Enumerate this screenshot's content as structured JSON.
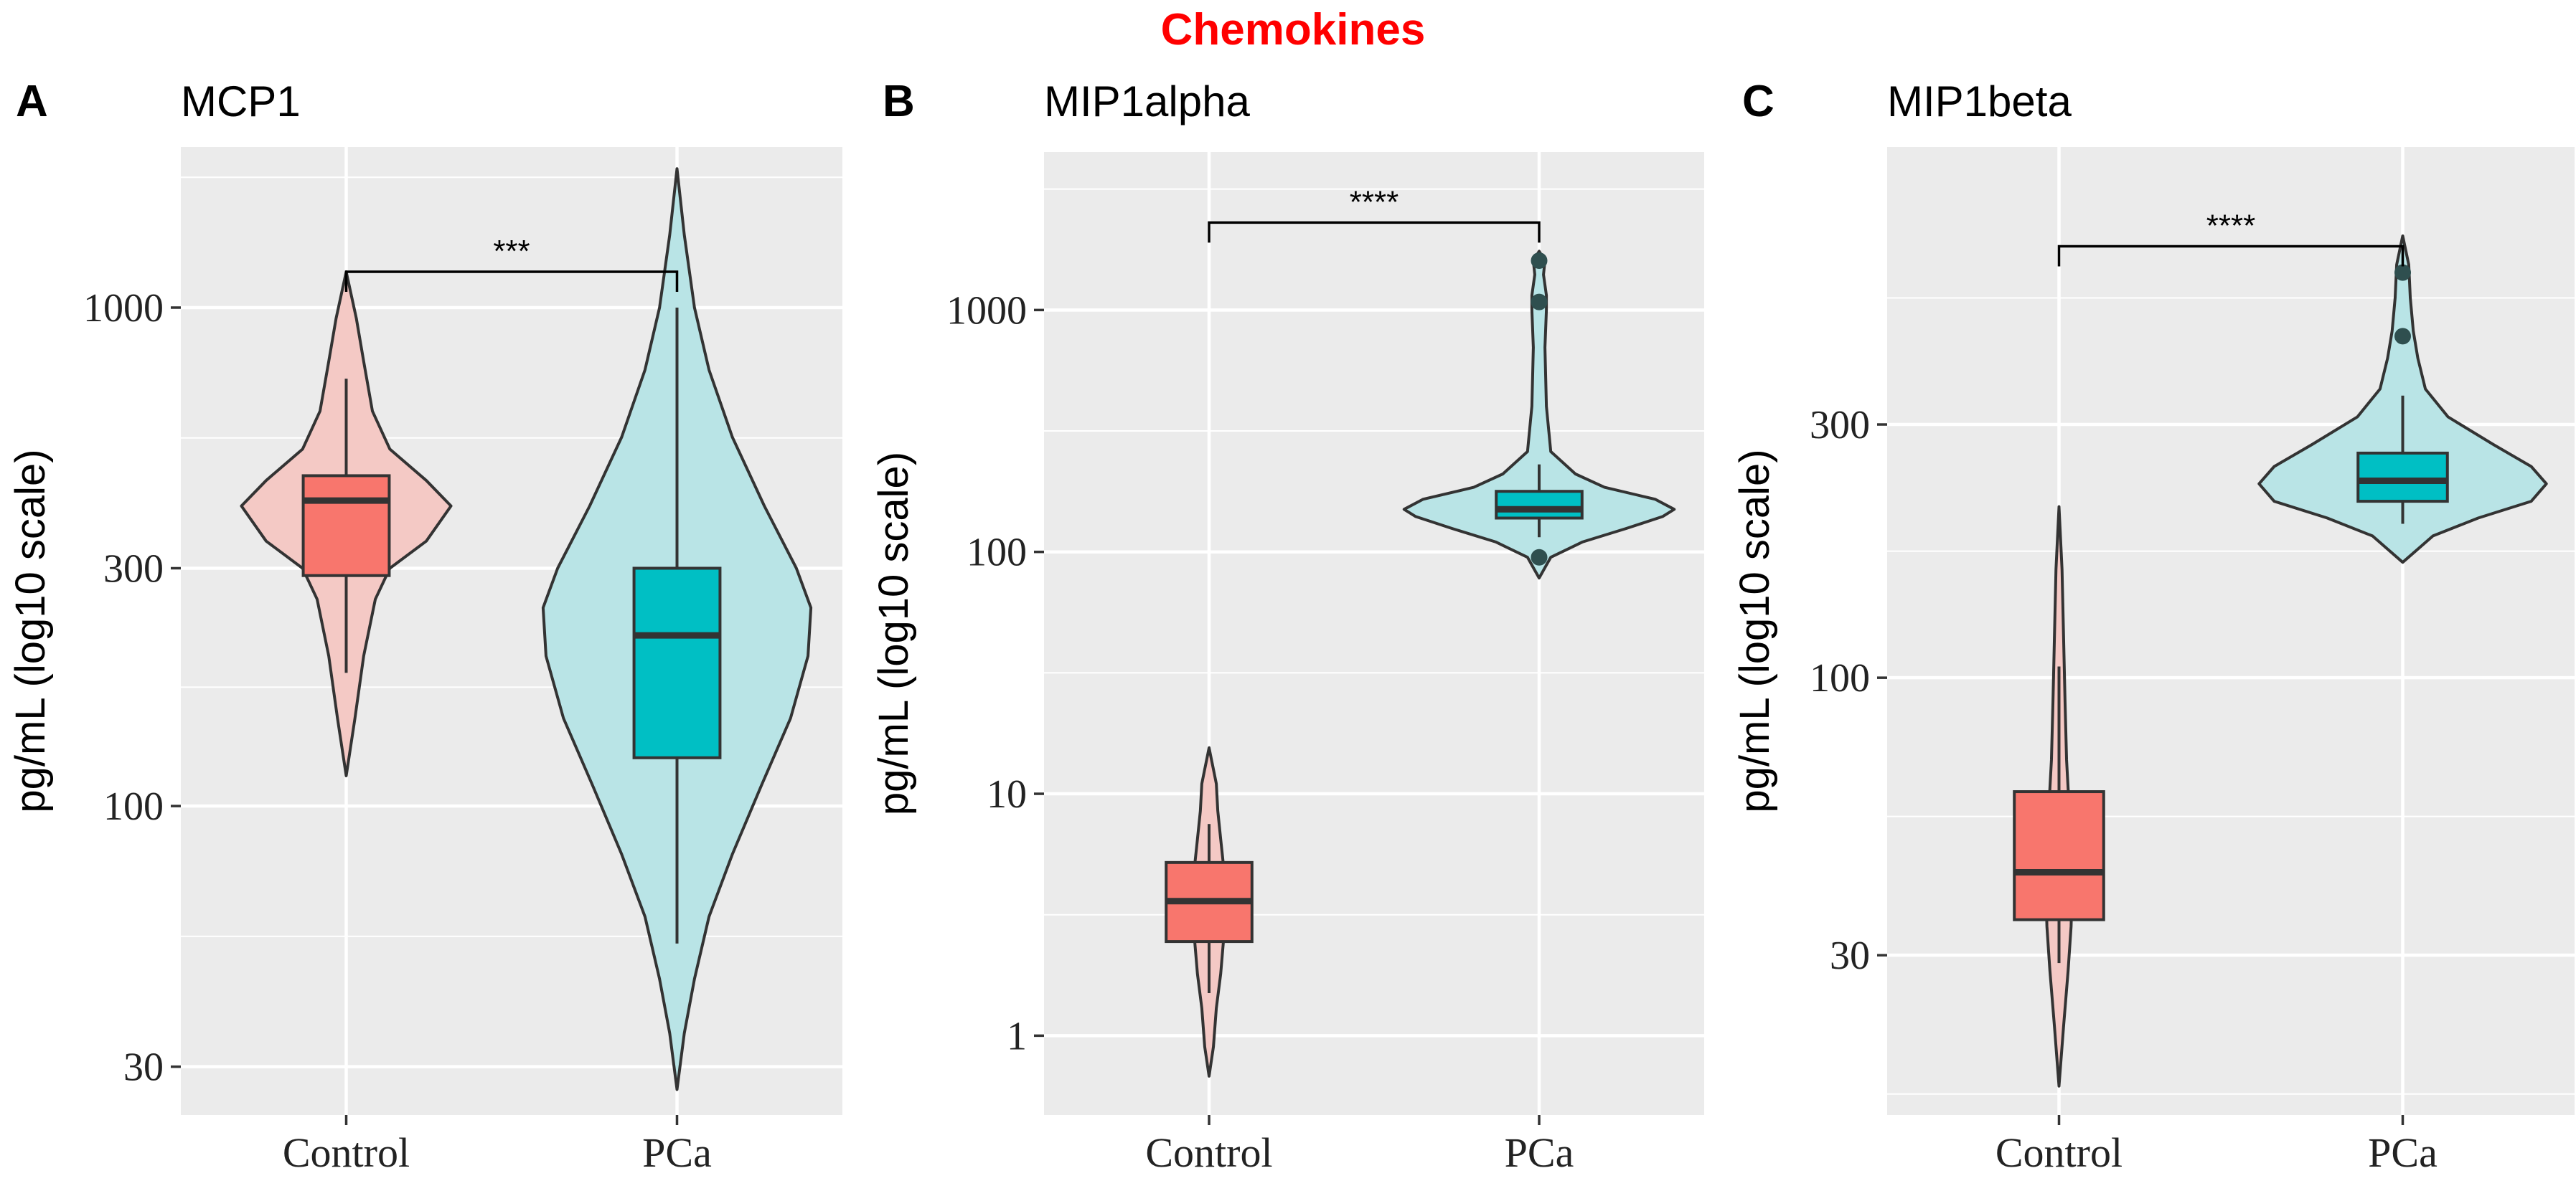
{
  "figure_title": "Chemokines",
  "colors": {
    "control_box": "#f8766d",
    "control_violin": "#f4c9c5",
    "pca_box": "#00bfc4",
    "pca_violin": "#b9e4e6",
    "panel_bg": "#ebebeb",
    "grid": "#ffffff",
    "outline": "#333333",
    "title_red": "#ff0000"
  },
  "chart_data": [
    {
      "type": "violin-box",
      "panel_letter": "A",
      "title": "MCP1",
      "ylabel": "pg/mL (log10 scale)",
      "yscale": "log10",
      "ylim": [
        24,
        2100
      ],
      "yticks": [
        30,
        100,
        300,
        1000
      ],
      "ytick_labels": [
        "30",
        "100",
        "300",
        "1000"
      ],
      "categories": [
        "Control",
        "PCa"
      ],
      "groups": [
        {
          "name": "Control",
          "box": {
            "q1": 290,
            "median": 410,
            "q3": 460,
            "whisker_low": 185,
            "whisker_high": 720
          },
          "outliers": [],
          "violin": [
            [
              115,
              0
            ],
            [
              150,
              0.06
            ],
            [
              200,
              0.12
            ],
            [
              260,
              0.2
            ],
            [
              300,
              0.3
            ],
            [
              340,
              0.55
            ],
            [
              400,
              0.72
            ],
            [
              450,
              0.55
            ],
            [
              520,
              0.3
            ],
            [
              620,
              0.18
            ],
            [
              780,
              0.12
            ],
            [
              950,
              0.07
            ],
            [
              1180,
              0
            ]
          ]
        },
        {
          "name": "PCa",
          "box": {
            "q1": 125,
            "median": 220,
            "q3": 300,
            "whisker_low": 53,
            "whisker_high": 1000
          },
          "outliers": [],
          "violin": [
            [
              27,
              0
            ],
            [
              35,
              0.05
            ],
            [
              45,
              0.12
            ],
            [
              60,
              0.22
            ],
            [
              80,
              0.38
            ],
            [
              110,
              0.58
            ],
            [
              150,
              0.78
            ],
            [
              200,
              0.9
            ],
            [
              250,
              0.92
            ],
            [
              300,
              0.82
            ],
            [
              400,
              0.6
            ],
            [
              550,
              0.38
            ],
            [
              750,
              0.22
            ],
            [
              1000,
              0.12
            ],
            [
              1400,
              0.05
            ],
            [
              1900,
              0
            ]
          ]
        }
      ],
      "significance": {
        "label": "***",
        "y": 1180
      }
    },
    {
      "type": "violin-box",
      "panel_letter": "B",
      "title": "MIP1alpha",
      "ylabel": "pg/mL (log10 scale)",
      "yscale": "log10",
      "ylim": [
        0.47,
        4500
      ],
      "yticks": [
        1,
        10,
        100,
        1000
      ],
      "ytick_labels": [
        "1",
        "10",
        "100",
        "1000"
      ],
      "categories": [
        "Control",
        "PCa"
      ],
      "groups": [
        {
          "name": "Control",
          "box": {
            "q1": 2.45,
            "median": 3.6,
            "q3": 5.2,
            "whisker_low": 1.5,
            "whisker_high": 7.5
          },
          "outliers": [],
          "violin": [
            [
              0.68,
              0
            ],
            [
              0.9,
              0.03
            ],
            [
              1.3,
              0.05
            ],
            [
              1.8,
              0.08
            ],
            [
              2.5,
              0.1
            ],
            [
              3.5,
              0.12
            ],
            [
              5.0,
              0.1
            ],
            [
              6.5,
              0.08
            ],
            [
              8.5,
              0.06
            ],
            [
              11,
              0.05
            ],
            [
              15.5,
              0
            ]
          ]
        },
        {
          "name": "PCa",
          "box": {
            "q1": 138,
            "median": 150,
            "q3": 178,
            "whisker_low": 115,
            "whisker_high": 230
          },
          "outliers": [
            95,
            1080,
            1600
          ],
          "violin": [
            [
              78,
              0
            ],
            [
              95,
              0.08
            ],
            [
              110,
              0.3
            ],
            [
              125,
              0.6
            ],
            [
              140,
              0.85
            ],
            [
              150,
              0.93
            ],
            [
              165,
              0.8
            ],
            [
              185,
              0.45
            ],
            [
              210,
              0.25
            ],
            [
              260,
              0.08
            ],
            [
              400,
              0.05
            ],
            [
              700,
              0.04
            ],
            [
              1000,
              0.05
            ],
            [
              1150,
              0.05
            ],
            [
              1400,
              0.03
            ],
            [
              1600,
              0.04
            ],
            [
              1750,
              0
            ]
          ]
        }
      ],
      "significance": {
        "label": "****",
        "y": 2300
      }
    },
    {
      "type": "violin-box",
      "panel_letter": "C",
      "title": "MIP1beta",
      "ylabel": "pg/mL (log10 scale)",
      "yscale": "log10",
      "ylim": [
        15,
        1000
      ],
      "yticks": [
        30,
        100,
        300
      ],
      "ytick_labels": [
        "30",
        "100",
        "300"
      ],
      "categories": [
        "Control",
        "PCa"
      ],
      "groups": [
        {
          "name": "Control",
          "box": {
            "q1": 35,
            "median": 43,
            "q3": 61,
            "whisker_low": 29,
            "whisker_high": 105
          },
          "outliers": [],
          "violin": [
            [
              17,
              0
            ],
            [
              22,
              0.03
            ],
            [
              28,
              0.06
            ],
            [
              34,
              0.08
            ],
            [
              43,
              0.09
            ],
            [
              55,
              0.07
            ],
            [
              70,
              0.05
            ],
            [
              90,
              0.04
            ],
            [
              120,
              0.03
            ],
            [
              160,
              0.02
            ],
            [
              210,
              0
            ]
          ]
        },
        {
          "name": "PCa",
          "box": {
            "q1": 215,
            "median": 235,
            "q3": 265,
            "whisker_low": 195,
            "whisker_high": 340
          },
          "outliers": [
            440,
            580
          ],
          "violin": [
            [
              165,
              0
            ],
            [
              185,
              0.2
            ],
            [
              200,
              0.5
            ],
            [
              215,
              0.85
            ],
            [
              232,
              0.95
            ],
            [
              250,
              0.85
            ],
            [
              275,
              0.6
            ],
            [
              310,
              0.3
            ],
            [
              350,
              0.15
            ],
            [
              400,
              0.1
            ],
            [
              450,
              0.07
            ],
            [
              520,
              0.05
            ],
            [
              600,
              0.04
            ],
            [
              680,
              0
            ]
          ]
        }
      ],
      "significance": {
        "label": "****",
        "y": 650
      }
    }
  ]
}
